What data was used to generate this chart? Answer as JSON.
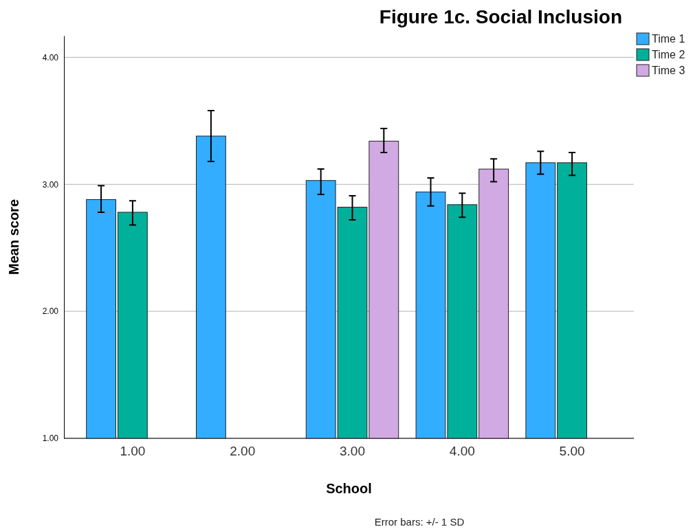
{
  "chart_data": {
    "type": "bar",
    "title": "Figure 1c. Social Inclusion",
    "xlabel": "School",
    "ylabel": "Mean score",
    "categories": [
      "1.00",
      "2.00",
      "3.00",
      "4.00",
      "5.00"
    ],
    "series": [
      {
        "name": "Time 1",
        "color": "#33adff",
        "values": [
          2.88,
          3.38,
          3.03,
          2.94,
          3.17
        ],
        "errors": [
          [
            2.78,
            2.99
          ],
          [
            3.18,
            3.58
          ],
          [
            2.92,
            3.12
          ],
          [
            2.83,
            3.05
          ],
          [
            3.08,
            3.26
          ]
        ]
      },
      {
        "name": "Time 2",
        "color": "#00b09b",
        "values": [
          2.78,
          null,
          2.82,
          2.84,
          3.17
        ],
        "errors": [
          [
            2.68,
            2.87
          ],
          null,
          [
            2.72,
            2.91
          ],
          [
            2.74,
            2.93
          ],
          [
            3.07,
            3.25
          ]
        ]
      },
      {
        "name": "Time 3",
        "color": "#d1a9e3",
        "values": [
          null,
          null,
          3.34,
          3.12,
          null
        ],
        "errors": [
          null,
          null,
          [
            3.25,
            3.44
          ],
          [
            3.02,
            3.2
          ],
          null
        ]
      }
    ],
    "ylim": [
      1,
      4.17
    ],
    "yticks": [
      {
        "value": 1,
        "label": "1.00"
      },
      {
        "value": 2,
        "label": "2.00"
      },
      {
        "value": 3,
        "label": "3.00"
      },
      {
        "value": 4,
        "label": "4.00"
      }
    ],
    "grid": "y",
    "legend": "top right",
    "annotations": [
      "Error bars: +/- 1 SD"
    ]
  }
}
